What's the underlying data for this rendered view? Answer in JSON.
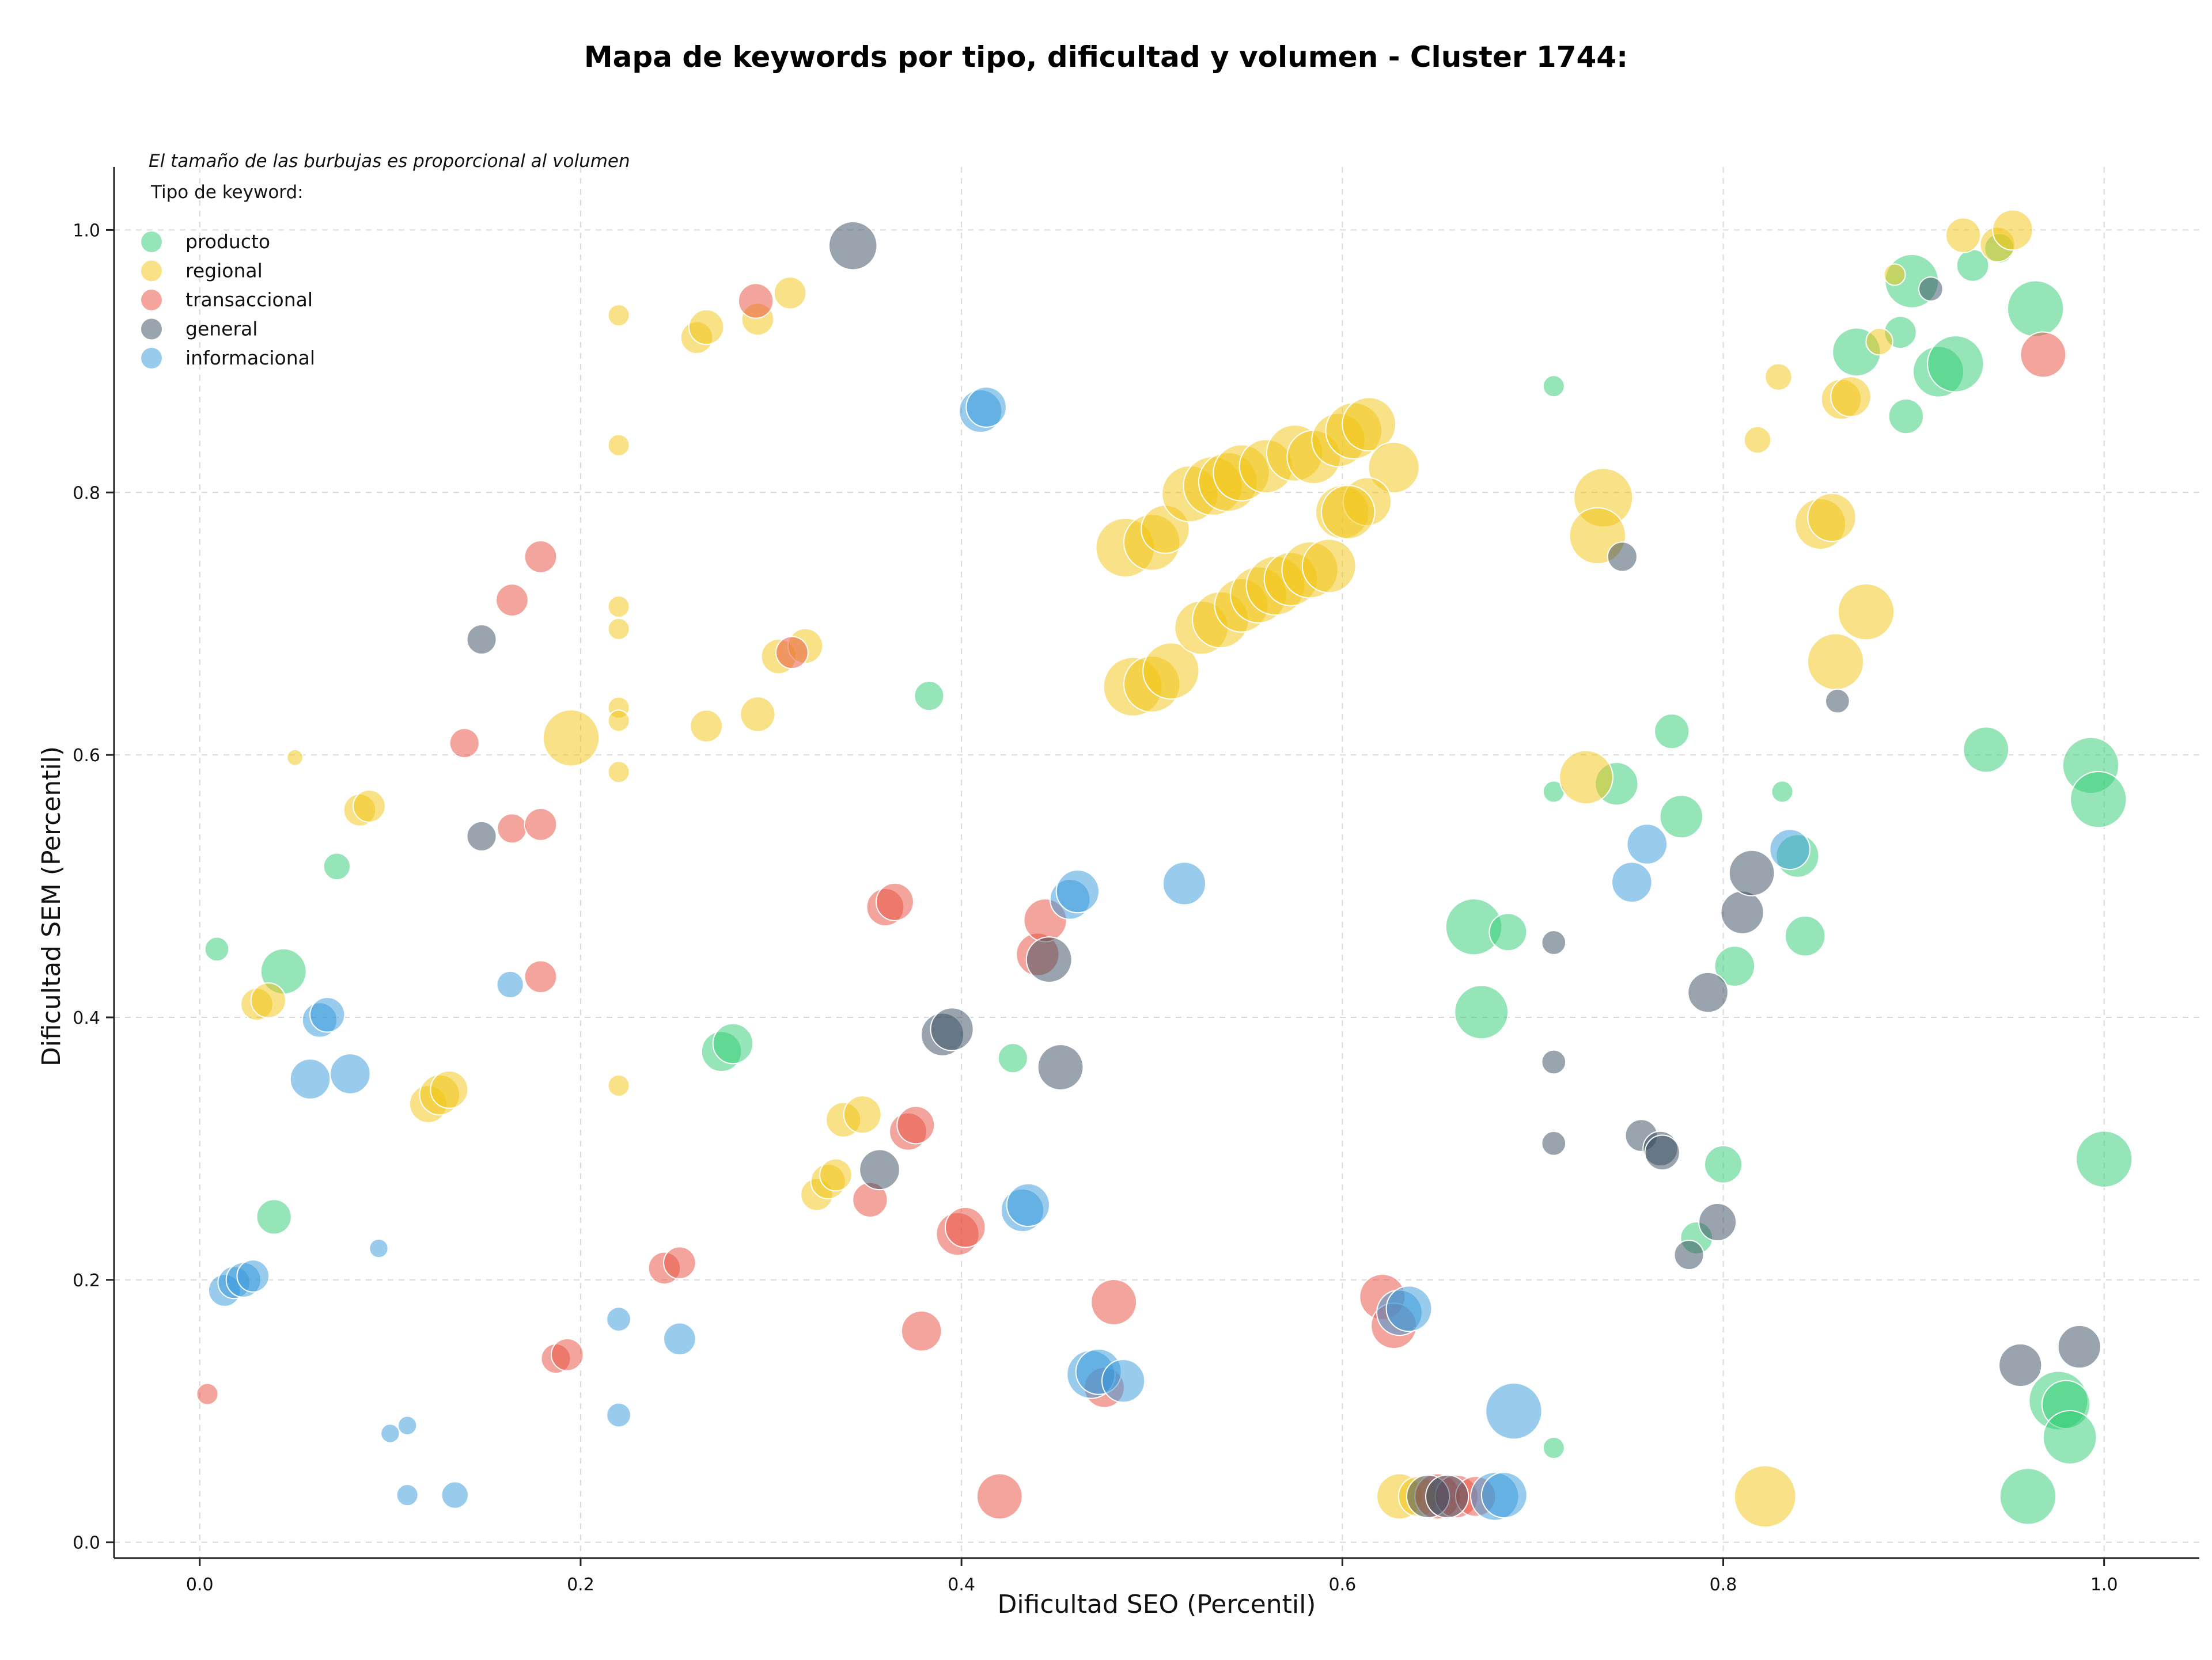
{
  "chart_data": {
    "type": "scatter",
    "title": "Mapa de keywords por tipo, dificultad y volumen - Cluster 1744:",
    "xlabel": "Dificultad SEO (Percentil)",
    "ylabel": "Dificultad SEM (Percentil)",
    "xlim": [
      -0.045,
      1.05
    ],
    "ylim": [
      -0.012,
      1.048
    ],
    "xticks": [
      "0.0",
      "0.2",
      "0.4",
      "0.6",
      "0.8",
      "1.0"
    ],
    "yticks": [
      "0.0",
      "0.2",
      "0.4",
      "0.6",
      "0.8",
      "1.0"
    ],
    "grid": true,
    "legend_position": "upper-left",
    "note": "El tamaño de las burbujas es proporcional al volumen",
    "legend_title": "Tipo de keyword:",
    "series": [
      {
        "name": "producto",
        "color": "#2ecc71",
        "points": [
          [
            0.009,
            0.452,
            18
          ],
          [
            0.044,
            0.435,
            34
          ],
          [
            0.039,
            0.248,
            26
          ],
          [
            0.072,
            0.515,
            20
          ],
          [
            0.274,
            0.374,
            30
          ],
          [
            0.28,
            0.38,
            30
          ],
          [
            0.383,
            0.645,
            22
          ],
          [
            0.427,
            0.369,
            22
          ],
          [
            0.669,
            0.469,
            42
          ],
          [
            0.687,
            0.465,
            28
          ],
          [
            0.673,
            0.404,
            40
          ],
          [
            0.711,
            0.881,
            16
          ],
          [
            0.711,
            0.572,
            16
          ],
          [
            0.711,
            0.072,
            16
          ],
          [
            0.744,
            0.578,
            32
          ],
          [
            0.773,
            0.618,
            26
          ],
          [
            0.778,
            0.553,
            32
          ],
          [
            0.8,
            0.288,
            28
          ],
          [
            0.806,
            0.439,
            30
          ],
          [
            0.786,
            0.232,
            24
          ],
          [
            0.831,
            0.572,
            16
          ],
          [
            0.839,
            0.523,
            32
          ],
          [
            0.843,
            0.462,
            30
          ],
          [
            0.87,
            0.907,
            36
          ],
          [
            0.893,
            0.922,
            24
          ],
          [
            0.896,
            0.858,
            26
          ],
          [
            0.899,
            0.961,
            40
          ],
          [
            0.913,
            0.892,
            38
          ],
          [
            0.922,
            0.898,
            42
          ],
          [
            0.931,
            0.973,
            24
          ],
          [
            0.945,
            0.986,
            22
          ],
          [
            0.964,
            0.94,
            42
          ],
          [
            0.938,
            0.604,
            34
          ],
          [
            0.993,
            0.592,
            42
          ],
          [
            0.997,
            0.566,
            42
          ],
          [
            1.0,
            0.292,
            42
          ],
          [
            0.96,
            0.035,
            42
          ],
          [
            0.976,
            0.108,
            44
          ],
          [
            0.98,
            0.105,
            36
          ],
          [
            0.982,
            0.08,
            40
          ]
        ]
      },
      {
        "name": "regional",
        "color": "#f1c40f",
        "points": [
          [
            0.05,
            0.598,
            12
          ],
          [
            0.03,
            0.41,
            24
          ],
          [
            0.036,
            0.413,
            26
          ],
          [
            0.084,
            0.558,
            24
          ],
          [
            0.089,
            0.561,
            24
          ],
          [
            0.12,
            0.334,
            28
          ],
          [
            0.126,
            0.341,
            30
          ],
          [
            0.131,
            0.345,
            28
          ],
          [
            0.195,
            0.613,
            42
          ],
          [
            0.22,
            0.935,
            16
          ],
          [
            0.22,
            0.836,
            16
          ],
          [
            0.22,
            0.713,
            16
          ],
          [
            0.22,
            0.696,
            16
          ],
          [
            0.22,
            0.636,
            16
          ],
          [
            0.22,
            0.626,
            16
          ],
          [
            0.22,
            0.587,
            16
          ],
          [
            0.22,
            0.348,
            16
          ],
          [
            0.261,
            0.918,
            24
          ],
          [
            0.266,
            0.926,
            26
          ],
          [
            0.266,
            0.622,
            24
          ],
          [
            0.293,
            0.932,
            24
          ],
          [
            0.31,
            0.952,
            24
          ],
          [
            0.293,
            0.631,
            26
          ],
          [
            0.304,
            0.675,
            26
          ],
          [
            0.318,
            0.683,
            26
          ],
          [
            0.324,
            0.265,
            24
          ],
          [
            0.33,
            0.275,
            26
          ],
          [
            0.334,
            0.28,
            24
          ],
          [
            0.338,
            0.322,
            26
          ],
          [
            0.348,
            0.326,
            28
          ],
          [
            0.486,
            0.758,
            44
          ],
          [
            0.5,
            0.762,
            42
          ],
          [
            0.507,
            0.772,
            36
          ],
          [
            0.49,
            0.652,
            44
          ],
          [
            0.5,
            0.654,
            42
          ],
          [
            0.51,
            0.664,
            42
          ],
          [
            0.52,
            0.799,
            42
          ],
          [
            0.532,
            0.805,
            44
          ],
          [
            0.54,
            0.808,
            44
          ],
          [
            0.547,
            0.815,
            42
          ],
          [
            0.56,
            0.82,
            40
          ],
          [
            0.575,
            0.83,
            42
          ],
          [
            0.585,
            0.827,
            40
          ],
          [
            0.598,
            0.84,
            40
          ],
          [
            0.606,
            0.847,
            42
          ],
          [
            0.614,
            0.852,
            40
          ],
          [
            0.627,
            0.819,
            38
          ],
          [
            0.6,
            0.785,
            40
          ],
          [
            0.613,
            0.793,
            36
          ],
          [
            0.526,
            0.697,
            40
          ],
          [
            0.536,
            0.703,
            42
          ],
          [
            0.547,
            0.714,
            40
          ],
          [
            0.556,
            0.722,
            42
          ],
          [
            0.565,
            0.729,
            44
          ],
          [
            0.573,
            0.734,
            40
          ],
          [
            0.583,
            0.741,
            42
          ],
          [
            0.593,
            0.744,
            40
          ],
          [
            0.603,
            0.785,
            40
          ],
          [
            0.728,
            0.583,
            40
          ],
          [
            0.737,
            0.796,
            44
          ],
          [
            0.734,
            0.767,
            42
          ],
          [
            0.818,
            0.84,
            20
          ],
          [
            0.829,
            0.888,
            20
          ],
          [
            0.851,
            0.776,
            38
          ],
          [
            0.857,
            0.781,
            36
          ],
          [
            0.862,
            0.871,
            30
          ],
          [
            0.867,
            0.873,
            30
          ],
          [
            0.859,
            0.671,
            42
          ],
          [
            0.875,
            0.709,
            42
          ],
          [
            0.882,
            0.915,
            20
          ],
          [
            0.89,
            0.966,
            16
          ],
          [
            0.926,
            0.996,
            26
          ],
          [
            0.944,
            0.989,
            26
          ],
          [
            0.952,
            1.0,
            30
          ],
          [
            0.822,
            0.035,
            46
          ],
          [
            0.63,
            0.035,
            34
          ],
          [
            0.64,
            0.035,
            30
          ]
        ]
      },
      {
        "name": "transaccional",
        "color": "#e74c3c",
        "points": [
          [
            0.004,
            0.113,
            16
          ],
          [
            0.139,
            0.609,
            22
          ],
          [
            0.164,
            0.718,
            24
          ],
          [
            0.179,
            0.751,
            24
          ],
          [
            0.164,
            0.544,
            22
          ],
          [
            0.179,
            0.547,
            24
          ],
          [
            0.179,
            0.431,
            24
          ],
          [
            0.187,
            0.14,
            22
          ],
          [
            0.193,
            0.143,
            24
          ],
          [
            0.244,
            0.209,
            24
          ],
          [
            0.252,
            0.213,
            24
          ],
          [
            0.292,
            0.946,
            26
          ],
          [
            0.311,
            0.678,
            24
          ],
          [
            0.352,
            0.261,
            26
          ],
          [
            0.36,
            0.484,
            28
          ],
          [
            0.365,
            0.488,
            28
          ],
          [
            0.372,
            0.313,
            28
          ],
          [
            0.376,
            0.318,
            28
          ],
          [
            0.379,
            0.161,
            30
          ],
          [
            0.398,
            0.235,
            32
          ],
          [
            0.402,
            0.24,
            30
          ],
          [
            0.42,
            0.035,
            34
          ],
          [
            0.44,
            0.448,
            32
          ],
          [
            0.444,
            0.474,
            32
          ],
          [
            0.475,
            0.118,
            30
          ],
          [
            0.48,
            0.183,
            34
          ],
          [
            0.621,
            0.187,
            34
          ],
          [
            0.627,
            0.165,
            34
          ],
          [
            0.65,
            0.035,
            34
          ],
          [
            0.66,
            0.035,
            32
          ],
          [
            0.67,
            0.035,
            30
          ],
          [
            0.968,
            0.905,
            34
          ]
        ]
      },
      {
        "name": "general",
        "color": "#34495e",
        "points": [
          [
            0.148,
            0.688,
            22
          ],
          [
            0.148,
            0.538,
            22
          ],
          [
            0.343,
            0.988,
            36
          ],
          [
            0.357,
            0.284,
            30
          ],
          [
            0.39,
            0.387,
            32
          ],
          [
            0.395,
            0.391,
            32
          ],
          [
            0.446,
            0.444,
            34
          ],
          [
            0.452,
            0.362,
            34
          ],
          [
            0.645,
            0.035,
            32
          ],
          [
            0.655,
            0.035,
            32
          ],
          [
            0.711,
            0.457,
            18
          ],
          [
            0.711,
            0.366,
            18
          ],
          [
            0.711,
            0.304,
            18
          ],
          [
            0.747,
            0.751,
            22
          ],
          [
            0.757,
            0.31,
            24
          ],
          [
            0.767,
            0.3,
            26
          ],
          [
            0.768,
            0.297,
            26
          ],
          [
            0.782,
            0.219,
            22
          ],
          [
            0.792,
            0.419,
            30
          ],
          [
            0.797,
            0.244,
            28
          ],
          [
            0.81,
            0.48,
            32
          ],
          [
            0.815,
            0.51,
            34
          ],
          [
            0.86,
            0.641,
            18
          ],
          [
            0.909,
            0.955,
            18
          ],
          [
            0.956,
            0.135,
            32
          ],
          [
            0.987,
            0.149,
            32
          ]
        ]
      },
      {
        "name": "informacional",
        "color": "#3498db",
        "points": [
          [
            0.013,
            0.192,
            24
          ],
          [
            0.018,
            0.198,
            24
          ],
          [
            0.023,
            0.2,
            26
          ],
          [
            0.028,
            0.203,
            24
          ],
          [
            0.058,
            0.353,
            30
          ],
          [
            0.063,
            0.398,
            26
          ],
          [
            0.067,
            0.402,
            26
          ],
          [
            0.079,
            0.357,
            30
          ],
          [
            0.094,
            0.224,
            14
          ],
          [
            0.1,
            0.083,
            14
          ],
          [
            0.109,
            0.089,
            14
          ],
          [
            0.109,
            0.036,
            16
          ],
          [
            0.134,
            0.036,
            20
          ],
          [
            0.163,
            0.425,
            20
          ],
          [
            0.22,
            0.17,
            18
          ],
          [
            0.22,
            0.097,
            18
          ],
          [
            0.252,
            0.155,
            24
          ],
          [
            0.41,
            0.862,
            32
          ],
          [
            0.413,
            0.865,
            30
          ],
          [
            0.432,
            0.253,
            32
          ],
          [
            0.435,
            0.257,
            32
          ],
          [
            0.457,
            0.49,
            30
          ],
          [
            0.461,
            0.496,
            32
          ],
          [
            0.468,
            0.128,
            36
          ],
          [
            0.472,
            0.13,
            34
          ],
          [
            0.485,
            0.123,
            32
          ],
          [
            0.517,
            0.502,
            32
          ],
          [
            0.63,
            0.175,
            34
          ],
          [
            0.635,
            0.178,
            34
          ],
          [
            0.68,
            0.035,
            36
          ],
          [
            0.685,
            0.036,
            34
          ],
          [
            0.69,
            0.1,
            42
          ],
          [
            0.752,
            0.503,
            30
          ],
          [
            0.76,
            0.532,
            30
          ],
          [
            0.835,
            0.528,
            30
          ]
        ]
      }
    ]
  }
}
